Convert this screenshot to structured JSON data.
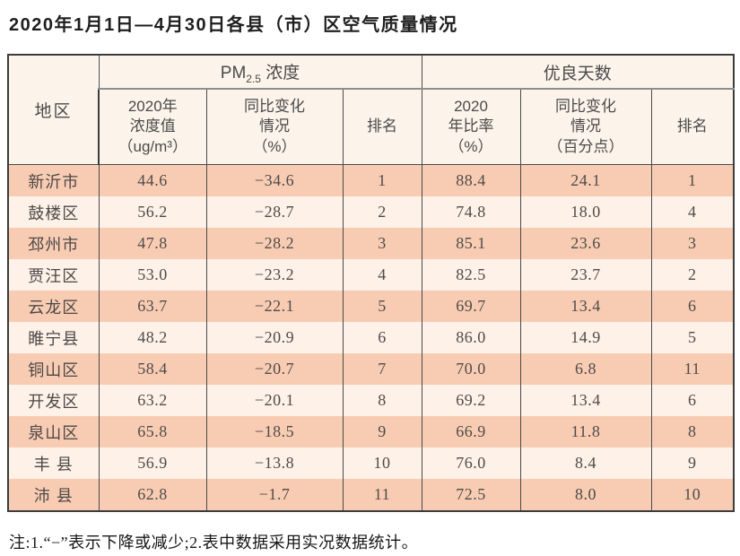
{
  "title": "2020年1月1日—4月30日各县（市）区空气质量情况",
  "table": {
    "head": {
      "region": "地区",
      "group_pm_prefix": "PM",
      "group_pm_sub": "2.5",
      "group_pm_suffix": " 浓度",
      "group_good": "优良天数",
      "sub_pm_value": {
        "lines": [
          "2020年",
          "浓度值",
          "（ug/m³）"
        ]
      },
      "sub_pm_change": {
        "lines": [
          "同比变化",
          "情况",
          "（%）"
        ]
      },
      "sub_pm_rank": "排名",
      "sub_good_ratio": {
        "lines": [
          "2020",
          "年比率",
          "（%）"
        ]
      },
      "sub_good_change": {
        "lines": [
          "同比变化",
          "情况",
          "（百分点）"
        ]
      },
      "sub_good_rank": "排名"
    },
    "rows": [
      {
        "region": "新沂市",
        "pm_value": "44.6",
        "pm_change": "−34.6",
        "pm_rank": "1",
        "good_ratio": "88.4",
        "good_change": "24.1",
        "good_rank": "1"
      },
      {
        "region": "鼓楼区",
        "pm_value": "56.2",
        "pm_change": "−28.7",
        "pm_rank": "2",
        "good_ratio": "74.8",
        "good_change": "18.0",
        "good_rank": "4"
      },
      {
        "region": "邳州市",
        "pm_value": "47.8",
        "pm_change": "−28.2",
        "pm_rank": "3",
        "good_ratio": "85.1",
        "good_change": "23.6",
        "good_rank": "3"
      },
      {
        "region": "贾汪区",
        "pm_value": "53.0",
        "pm_change": "−23.2",
        "pm_rank": "4",
        "good_ratio": "82.5",
        "good_change": "23.7",
        "good_rank": "2"
      },
      {
        "region": "云龙区",
        "pm_value": "63.7",
        "pm_change": "−22.1",
        "pm_rank": "5",
        "good_ratio": "69.7",
        "good_change": "13.4",
        "good_rank": "6"
      },
      {
        "region": "睢宁县",
        "pm_value": "48.2",
        "pm_change": "−20.9",
        "pm_rank": "6",
        "good_ratio": "86.0",
        "good_change": "14.9",
        "good_rank": "5"
      },
      {
        "region": "铜山区",
        "pm_value": "58.4",
        "pm_change": "−20.7",
        "pm_rank": "7",
        "good_ratio": "70.0",
        "good_change": "6.8",
        "good_rank": "11"
      },
      {
        "region": "开发区",
        "pm_value": "63.2",
        "pm_change": "−20.1",
        "pm_rank": "8",
        "good_ratio": "69.2",
        "good_change": "13.4",
        "good_rank": "6"
      },
      {
        "region": "泉山区",
        "pm_value": "65.8",
        "pm_change": "−18.5",
        "pm_rank": "9",
        "good_ratio": "66.9",
        "good_change": "11.8",
        "good_rank": "8"
      },
      {
        "region": "丰 县",
        "pm_value": "56.9",
        "pm_change": "−13.8",
        "pm_rank": "10",
        "good_ratio": "76.0",
        "good_change": "8.4",
        "good_rank": "9"
      },
      {
        "region": "沛 县",
        "pm_value": "62.8",
        "pm_change": "−1.7",
        "pm_rank": "11",
        "good_ratio": "72.5",
        "good_change": "8.0",
        "good_rank": "10"
      }
    ]
  },
  "note": "注:1.“−”表示下降或减少;2.表中数据采用实况数据统计。",
  "colors": {
    "row_odd": "#f8ccb3",
    "row_even": "#fdf1e8",
    "header_bg": "#fcf4ea",
    "border_dark": "#3c3c3c"
  }
}
